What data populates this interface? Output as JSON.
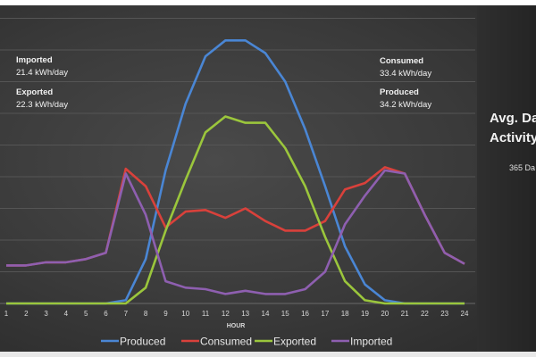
{
  "chart_data": {
    "type": "line",
    "title": "",
    "xlabel": "HOUR",
    "ylabel": "",
    "x": [
      1,
      2,
      3,
      4,
      5,
      6,
      7,
      8,
      9,
      10,
      11,
      12,
      13,
      14,
      15,
      16,
      17,
      18,
      19,
      20,
      21,
      22,
      23,
      24
    ],
    "ylim": [
      0,
      9
    ],
    "grid": true,
    "legend_position": "bottom",
    "series": [
      {
        "name": "Produced",
        "color": "#4a86d4",
        "values": [
          0,
          0,
          0,
          0,
          0,
          0,
          0.1,
          1.4,
          4.2,
          6.3,
          7.8,
          8.3,
          8.3,
          7.9,
          7.0,
          5.5,
          3.7,
          1.8,
          0.6,
          0.1,
          0,
          0,
          0,
          0
        ]
      },
      {
        "name": "Consumed",
        "color": "#d9413b",
        "values": [
          1.2,
          1.2,
          1.3,
          1.3,
          1.4,
          1.6,
          4.25,
          3.7,
          2.4,
          2.9,
          2.95,
          2.7,
          3.0,
          2.6,
          2.3,
          2.3,
          2.6,
          3.6,
          3.8,
          4.3,
          4.1,
          2.8,
          1.6,
          1.25
        ]
      },
      {
        "name": "Exported",
        "color": "#9bc63c",
        "values": [
          0,
          0,
          0,
          0,
          0,
          0,
          0,
          0.5,
          2.3,
          3.9,
          5.4,
          5.9,
          5.7,
          5.7,
          4.9,
          3.7,
          2.1,
          0.7,
          0.1,
          0,
          0,
          0,
          0,
          0
        ]
      },
      {
        "name": "Imported",
        "color": "#8e5fb0",
        "values": [
          1.2,
          1.2,
          1.3,
          1.3,
          1.4,
          1.6,
          4.1,
          2.8,
          0.7,
          0.5,
          0.45,
          0.3,
          0.4,
          0.3,
          0.3,
          0.45,
          1.0,
          2.5,
          3.4,
          4.2,
          4.1,
          2.8,
          1.6,
          1.25
        ]
      }
    ]
  },
  "stats": {
    "imported": {
      "label": "Imported",
      "value": "21.4 kWh/day"
    },
    "exported": {
      "label": "Exported",
      "value": "22.3 kWh/day"
    },
    "consumed": {
      "label": "Consumed",
      "value": "33.4 kWh/day"
    },
    "produced": {
      "label": "Produced",
      "value": "34.2 kWh/day"
    }
  },
  "side": {
    "title_line1": "Avg. Da",
    "title_line2": "Activity",
    "subtitle": "365 Da"
  }
}
